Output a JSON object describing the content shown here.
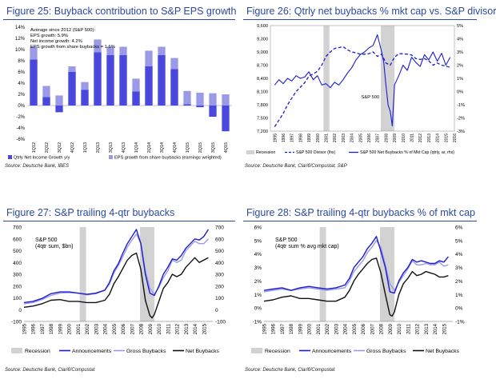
{
  "colors": {
    "title": "#2a4aa0",
    "dark_blue": "#1c1cd0",
    "mid_blue": "#4848e0",
    "light_blue": "#9a9ae8",
    "black": "#111111",
    "recession": "#d2d2d2"
  },
  "panels": [
    {
      "title": "Figure 25: Buyback contribution to S&P EPS growth",
      "source": "Source: Deutsche Bank, IBES"
    },
    {
      "title": "Figure 26: Qtrly net buybacks % mkt cap vs. S&P divisor",
      "source": "Source: Deutsche Bank, Clarifi/Compustat, S&P"
    },
    {
      "title": "Figure 27: S&P trailing 4-qtr buybacks",
      "source": "Source: Deutsche Bank, Clarifi/Compustat"
    },
    {
      "title": "Figure 28: S&P trailing 4-qtr buybacks % of mkt cap",
      "source": "Source: Deutsche Bank, Clarifi/Compustat"
    }
  ],
  "chart_data": [
    {
      "type": "bar",
      "categories": [
        "1Q12",
        "2Q12",
        "3Q12",
        "4Q12",
        "1Q13",
        "2Q13",
        "3Q13",
        "4Q13",
        "1Q14",
        "2Q14",
        "3Q14",
        "4Q14",
        "1Q15",
        "2Q15",
        "3Q15",
        "4Q15"
      ],
      "series": [
        {
          "name": "Qtrly Net Income Growth y/y",
          "values": [
            8.2,
            1.5,
            -1.2,
            6.0,
            2.8,
            9.5,
            9.0,
            9.0,
            2.5,
            7.0,
            9.0,
            6.5,
            0.2,
            -0.3,
            -2.0,
            -4.6
          ]
        },
        {
          "name": "EPS growth from share buybacks (earnings weighted)",
          "values": [
            10.5,
            3.5,
            1.8,
            7.0,
            4.2,
            11.8,
            10.5,
            10.5,
            4.8,
            9.8,
            10.5,
            8.5,
            2.6,
            2.3,
            2.2,
            2.0
          ]
        }
      ],
      "yticks": [
        "14%",
        "12%",
        "10%",
        "8%",
        "6%",
        "4%",
        "2%",
        "0%",
        "-2%",
        "-4%",
        "-6%"
      ],
      "ylim": [
        -6,
        14
      ],
      "annotation": [
        "Average since 2012 (S&P 500):",
        "EPS growth: 5.9%",
        "Net income growth: 4.2%",
        "EPS growth from share buybacks = 1.6%"
      ],
      "legend": [
        "Qtrly Net Income Growth y/y",
        "EPS growth from share buybacks (earnings weighted)"
      ]
    },
    {
      "type": "line",
      "x_tick_labels": [
        "1995",
        "1996",
        "1997",
        "1998",
        "1999",
        "2000",
        "2001",
        "2002",
        "2003",
        "2004",
        "2005",
        "2006",
        "2007",
        "2008",
        "2009",
        "2010",
        "2011",
        "2012",
        "2013",
        "2014",
        "2015",
        "2016"
      ],
      "left_ticks": [
        "9,600",
        "9,300",
        "9,000",
        "8,700",
        "8,400",
        "8,100",
        "7,800",
        "7,500",
        "7,200"
      ],
      "right_ticks": [
        "5%",
        "4%",
        "3%",
        "2%",
        "1%",
        "0%",
        "-1%",
        "-2%",
        "-3%"
      ],
      "left_ylim": [
        7200,
        9600
      ],
      "right_ylim": [
        -3,
        5
      ],
      "recessions": [
        [
          2001.2,
          2001.9
        ],
        [
          2007.9,
          2009.5
        ]
      ],
      "label": "S&P 500",
      "series": [
        {
          "name": "S&P 500 Divisor (lhs)",
          "axis": "left",
          "x": [
            1995.5,
            1996,
            1996.5,
            1997,
            1997.5,
            1998,
            1998.5,
            1999,
            1999.5,
            2000,
            2000.5,
            2001,
            2001.5,
            2002,
            2002.5,
            2003,
            2003.5,
            2004,
            2004.5,
            2005,
            2005.5,
            2006,
            2006.5,
            2007,
            2007.5,
            2008,
            2008.5,
            2009,
            2009.5,
            2010,
            2010.5,
            2011,
            2011.5,
            2012,
            2012.5,
            2013,
            2013.5,
            2014,
            2014.5,
            2015,
            2015.5,
            2016
          ],
          "y": [
            7300,
            7450,
            7600,
            7800,
            7950,
            8100,
            8200,
            8300,
            8450,
            8500,
            8560,
            8700,
            8900,
            9000,
            9080,
            9100,
            9120,
            9050,
            9000,
            8980,
            8950,
            8950,
            8960,
            9000,
            8900,
            8950,
            8750,
            8700,
            8880,
            8960,
            8960,
            8950,
            8930,
            8850,
            8830,
            8850,
            8800,
            8700,
            8750,
            8700,
            8680,
            8650
          ]
        },
        {
          "name": "S&P 500 Net Buybacks % of Mkt Cap (qtrly, ar, rhs)",
          "axis": "right",
          "x": [
            1995.5,
            1996,
            1996.5,
            1997,
            1997.5,
            1998,
            1998.5,
            1999,
            1999.5,
            2000,
            2000.5,
            2001,
            2001.5,
            2002,
            2002.5,
            2003,
            2003.5,
            2004,
            2004.5,
            2005,
            2005.5,
            2006,
            2006.5,
            2007,
            2007.5,
            2008,
            2008.25,
            2008.5,
            2008.75,
            2009,
            2009.25,
            2009.5,
            2010,
            2010.5,
            2011,
            2011.5,
            2012,
            2012.5,
            2013,
            2013.5,
            2014,
            2014.5,
            2015,
            2015.5,
            2016
          ],
          "y": [
            0.5,
            0.9,
            0.6,
            1.0,
            0.8,
            1.2,
            1.0,
            1.1,
            1.5,
            0.9,
            1.2,
            0.5,
            0.6,
            0.3,
            0.7,
            0.5,
            0.9,
            1.4,
            1.8,
            2.4,
            2.8,
            3.0,
            3.3,
            3.5,
            4.3,
            3.0,
            2.2,
            0.5,
            -1.0,
            -1.5,
            -2.6,
            0.5,
            1.2,
            2.0,
            1.6,
            2.6,
            2.2,
            1.9,
            2.8,
            2.4,
            3.0,
            2.3,
            2.9,
            2.0,
            2.6
          ]
        }
      ],
      "legend": [
        "Recession",
        "S&P 500 Divisor (lhs)",
        "S&P 500 Net Buybacks % of Mkt Cap (qtrly, ar, rhs)"
      ]
    },
    {
      "type": "line",
      "x_tick_labels": [
        "1995",
        "1996",
        "1997",
        "1998",
        "1999",
        "2000",
        "2001",
        "2002",
        "2003",
        "2004",
        "2005",
        "2006",
        "2007",
        "2008",
        "2009",
        "2010",
        "2011",
        "2012",
        "2013",
        "2014",
        "2015"
      ],
      "yticks": [
        "700",
        "600",
        "500",
        "400",
        "300",
        "200",
        "100",
        "0",
        "-100"
      ],
      "ylim": [
        -100,
        700
      ],
      "recessions": [
        [
          2001.2,
          2001.9
        ],
        [
          2007.9,
          2009.5
        ]
      ],
      "label": [
        "S&P 500",
        "(4qtr sum, $bn)"
      ],
      "series": [
        {
          "name": "Announcements",
          "x": [
            1995,
            1996,
            1997,
            1998,
            1999,
            2000,
            2001,
            2002,
            2003,
            2004,
            2004.5,
            2005,
            2005.5,
            2006,
            2006.5,
            2007,
            2007.5,
            2008,
            2008.5,
            2009,
            2009.5,
            2010,
            2010.5,
            2011,
            2011.5,
            2012,
            2012.5,
            2013,
            2013.5,
            2014,
            2014.5,
            2015,
            2015.5
          ],
          "y": [
            60,
            70,
            95,
            135,
            150,
            150,
            140,
            130,
            140,
            165,
            230,
            330,
            390,
            480,
            560,
            620,
            680,
            560,
            300,
            140,
            120,
            200,
            300,
            360,
            430,
            420,
            460,
            520,
            560,
            600,
            590,
            620,
            680
          ]
        },
        {
          "name": "Gross Buybacks",
          "x": [
            1995,
            1996,
            1997,
            1998,
            1999,
            2000,
            2001,
            2002,
            2003,
            2004,
            2004.5,
            2005,
            2005.5,
            2006,
            2006.5,
            2007,
            2007.5,
            2008,
            2008.5,
            2009,
            2009.5,
            2010,
            2010.5,
            2011,
            2011.5,
            2012,
            2012.5,
            2013,
            2013.5,
            2014,
            2014.5,
            2015,
            2015.5
          ],
          "y": [
            50,
            60,
            85,
            120,
            140,
            145,
            140,
            125,
            135,
            165,
            215,
            310,
            375,
            450,
            530,
            590,
            640,
            560,
            330,
            180,
            130,
            190,
            270,
            330,
            420,
            400,
            420,
            500,
            540,
            580,
            560,
            560,
            600
          ]
        },
        {
          "name": "Net Buybacks",
          "x": [
            1995,
            1996,
            1997,
            1998,
            1999,
            2000,
            2001,
            2002,
            2003,
            2004,
            2004.5,
            2005,
            2005.5,
            2006,
            2006.5,
            2007,
            2007.5,
            2008,
            2008.5,
            2009,
            2009.25,
            2009.5,
            2010,
            2010.5,
            2011,
            2011.5,
            2012,
            2012.5,
            2013,
            2013.5,
            2014,
            2014.5,
            2015,
            2015.5
          ],
          "y": [
            20,
            30,
            50,
            80,
            85,
            70,
            70,
            60,
            60,
            80,
            130,
            220,
            280,
            350,
            420,
            460,
            480,
            340,
            80,
            -50,
            -70,
            -40,
            70,
            180,
            230,
            300,
            280,
            300,
            360,
            400,
            440,
            400,
            420,
            440
          ]
        }
      ],
      "legend": [
        "Recession",
        "Announcements",
        "Gross Buybacks",
        "Net Buybacks"
      ]
    },
    {
      "type": "line",
      "x_tick_labels": [
        "1995",
        "1996",
        "1997",
        "1998",
        "1999",
        "2000",
        "2001",
        "2002",
        "2003",
        "2004",
        "2005",
        "2006",
        "2007",
        "2008",
        "2009",
        "2010",
        "2011",
        "2012",
        "2013",
        "2014",
        "2015"
      ],
      "yticks": [
        "6%",
        "5%",
        "4%",
        "3%",
        "2%",
        "1%",
        "0%",
        "-1%"
      ],
      "ylim": [
        -1,
        6
      ],
      "recessions": [
        [
          2001.2,
          2001.9
        ],
        [
          2007.9,
          2009.5
        ]
      ],
      "label": [
        "S&P 500",
        "(4qtr sum % avg mkt cap)"
      ],
      "series": [
        {
          "name": "Announcements",
          "x": [
            1995,
            1996,
            1997,
            1998,
            1999,
            2000,
            2001,
            2002,
            2003,
            2004,
            2004.5,
            2005,
            2005.5,
            2006,
            2006.5,
            2007,
            2007.5,
            2008,
            2008.5,
            2009,
            2009.5,
            2010,
            2010.5,
            2011,
            2011.5,
            2012,
            2012.5,
            2013,
            2013.5,
            2014,
            2014.5,
            2015,
            2015.5
          ],
          "y": [
            1.3,
            1.4,
            1.5,
            1.3,
            1.5,
            1.6,
            1.5,
            1.4,
            1.5,
            1.7,
            2.2,
            3.0,
            3.4,
            3.8,
            4.4,
            4.8,
            5.3,
            4.2,
            3.0,
            1.2,
            1.1,
            2.0,
            2.6,
            3.0,
            3.6,
            3.4,
            3.5,
            3.4,
            3.3,
            3.3,
            3.5,
            3.4,
            3.8
          ]
        },
        {
          "name": "Gross Buybacks",
          "x": [
            1995,
            1996,
            1997,
            1998,
            1999,
            2000,
            2001,
            2002,
            2003,
            2004,
            2004.5,
            2005,
            2005.5,
            2006,
            2006.5,
            2007,
            2007.5,
            2008,
            2008.5,
            2009,
            2009.5,
            2010,
            2010.5,
            2011,
            2011.5,
            2012,
            2012.5,
            2013,
            2013.5,
            2014,
            2014.5,
            2015,
            2015.5
          ],
          "y": [
            1.2,
            1.3,
            1.4,
            1.3,
            1.4,
            1.5,
            1.4,
            1.3,
            1.4,
            1.5,
            2.0,
            2.7,
            3.1,
            3.5,
            4.1,
            4.5,
            5.0,
            4.5,
            3.2,
            1.8,
            1.3,
            1.9,
            2.4,
            2.9,
            3.5,
            3.2,
            3.2,
            3.3,
            3.2,
            3.2,
            3.4,
            3.1,
            3.2
          ]
        },
        {
          "name": "Net Buybacks",
          "x": [
            1995,
            1996,
            1997,
            1998,
            1999,
            2000,
            2001,
            2002,
            2003,
            2004,
            2004.5,
            2005,
            2005.5,
            2006,
            2006.5,
            2007,
            2007.5,
            2008,
            2008.5,
            2009,
            2009.25,
            2009.5,
            2010,
            2010.5,
            2011,
            2011.5,
            2012,
            2012.5,
            2013,
            2013.5,
            2014,
            2014.5,
            2015,
            2015.5
          ],
          "y": [
            0.5,
            0.6,
            0.8,
            0.9,
            0.7,
            0.7,
            0.6,
            0.5,
            0.5,
            0.8,
            1.3,
            2.0,
            2.5,
            2.9,
            3.3,
            3.6,
            3.7,
            2.6,
            1.0,
            -0.5,
            -0.6,
            -0.3,
            1.0,
            1.8,
            2.2,
            2.7,
            2.4,
            2.5,
            2.7,
            2.6,
            2.5,
            2.3,
            2.3,
            2.4
          ]
        }
      ],
      "legend": [
        "Recession",
        "Announcements",
        "Gross Buybacks",
        "Net Buybacks"
      ]
    }
  ]
}
